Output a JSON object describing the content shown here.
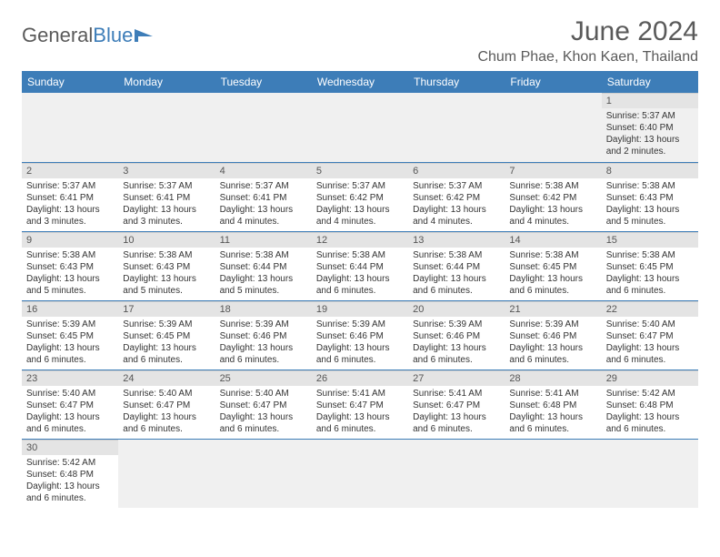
{
  "logo": {
    "text_gray": "General",
    "text_blue": "Blue"
  },
  "title": "June 2024",
  "location": "Chum Phae, Khon Kaen, Thailand",
  "colors": {
    "header_bg": "#3d7db8",
    "header_text": "#ffffff",
    "daynum_bg": "#e4e4e4",
    "text_gray": "#5a5a5a",
    "rule": "#3d7db8"
  },
  "weekdays": [
    "Sunday",
    "Monday",
    "Tuesday",
    "Wednesday",
    "Thursday",
    "Friday",
    "Saturday"
  ],
  "weeks": [
    [
      null,
      null,
      null,
      null,
      null,
      null,
      {
        "n": "1",
        "sr": "Sunrise: 5:37 AM",
        "ss": "Sunset: 6:40 PM",
        "dl": "Daylight: 13 hours and 2 minutes."
      }
    ],
    [
      {
        "n": "2",
        "sr": "Sunrise: 5:37 AM",
        "ss": "Sunset: 6:41 PM",
        "dl": "Daylight: 13 hours and 3 minutes."
      },
      {
        "n": "3",
        "sr": "Sunrise: 5:37 AM",
        "ss": "Sunset: 6:41 PM",
        "dl": "Daylight: 13 hours and 3 minutes."
      },
      {
        "n": "4",
        "sr": "Sunrise: 5:37 AM",
        "ss": "Sunset: 6:41 PM",
        "dl": "Daylight: 13 hours and 4 minutes."
      },
      {
        "n": "5",
        "sr": "Sunrise: 5:37 AM",
        "ss": "Sunset: 6:42 PM",
        "dl": "Daylight: 13 hours and 4 minutes."
      },
      {
        "n": "6",
        "sr": "Sunrise: 5:37 AM",
        "ss": "Sunset: 6:42 PM",
        "dl": "Daylight: 13 hours and 4 minutes."
      },
      {
        "n": "7",
        "sr": "Sunrise: 5:38 AM",
        "ss": "Sunset: 6:42 PM",
        "dl": "Daylight: 13 hours and 4 minutes."
      },
      {
        "n": "8",
        "sr": "Sunrise: 5:38 AM",
        "ss": "Sunset: 6:43 PM",
        "dl": "Daylight: 13 hours and 5 minutes."
      }
    ],
    [
      {
        "n": "9",
        "sr": "Sunrise: 5:38 AM",
        "ss": "Sunset: 6:43 PM",
        "dl": "Daylight: 13 hours and 5 minutes."
      },
      {
        "n": "10",
        "sr": "Sunrise: 5:38 AM",
        "ss": "Sunset: 6:43 PM",
        "dl": "Daylight: 13 hours and 5 minutes."
      },
      {
        "n": "11",
        "sr": "Sunrise: 5:38 AM",
        "ss": "Sunset: 6:44 PM",
        "dl": "Daylight: 13 hours and 5 minutes."
      },
      {
        "n": "12",
        "sr": "Sunrise: 5:38 AM",
        "ss": "Sunset: 6:44 PM",
        "dl": "Daylight: 13 hours and 6 minutes."
      },
      {
        "n": "13",
        "sr": "Sunrise: 5:38 AM",
        "ss": "Sunset: 6:44 PM",
        "dl": "Daylight: 13 hours and 6 minutes."
      },
      {
        "n": "14",
        "sr": "Sunrise: 5:38 AM",
        "ss": "Sunset: 6:45 PM",
        "dl": "Daylight: 13 hours and 6 minutes."
      },
      {
        "n": "15",
        "sr": "Sunrise: 5:38 AM",
        "ss": "Sunset: 6:45 PM",
        "dl": "Daylight: 13 hours and 6 minutes."
      }
    ],
    [
      {
        "n": "16",
        "sr": "Sunrise: 5:39 AM",
        "ss": "Sunset: 6:45 PM",
        "dl": "Daylight: 13 hours and 6 minutes."
      },
      {
        "n": "17",
        "sr": "Sunrise: 5:39 AM",
        "ss": "Sunset: 6:45 PM",
        "dl": "Daylight: 13 hours and 6 minutes."
      },
      {
        "n": "18",
        "sr": "Sunrise: 5:39 AM",
        "ss": "Sunset: 6:46 PM",
        "dl": "Daylight: 13 hours and 6 minutes."
      },
      {
        "n": "19",
        "sr": "Sunrise: 5:39 AM",
        "ss": "Sunset: 6:46 PM",
        "dl": "Daylight: 13 hours and 6 minutes."
      },
      {
        "n": "20",
        "sr": "Sunrise: 5:39 AM",
        "ss": "Sunset: 6:46 PM",
        "dl": "Daylight: 13 hours and 6 minutes."
      },
      {
        "n": "21",
        "sr": "Sunrise: 5:39 AM",
        "ss": "Sunset: 6:46 PM",
        "dl": "Daylight: 13 hours and 6 minutes."
      },
      {
        "n": "22",
        "sr": "Sunrise: 5:40 AM",
        "ss": "Sunset: 6:47 PM",
        "dl": "Daylight: 13 hours and 6 minutes."
      }
    ],
    [
      {
        "n": "23",
        "sr": "Sunrise: 5:40 AM",
        "ss": "Sunset: 6:47 PM",
        "dl": "Daylight: 13 hours and 6 minutes."
      },
      {
        "n": "24",
        "sr": "Sunrise: 5:40 AM",
        "ss": "Sunset: 6:47 PM",
        "dl": "Daylight: 13 hours and 6 minutes."
      },
      {
        "n": "25",
        "sr": "Sunrise: 5:40 AM",
        "ss": "Sunset: 6:47 PM",
        "dl": "Daylight: 13 hours and 6 minutes."
      },
      {
        "n": "26",
        "sr": "Sunrise: 5:41 AM",
        "ss": "Sunset: 6:47 PM",
        "dl": "Daylight: 13 hours and 6 minutes."
      },
      {
        "n": "27",
        "sr": "Sunrise: 5:41 AM",
        "ss": "Sunset: 6:47 PM",
        "dl": "Daylight: 13 hours and 6 minutes."
      },
      {
        "n": "28",
        "sr": "Sunrise: 5:41 AM",
        "ss": "Sunset: 6:48 PM",
        "dl": "Daylight: 13 hours and 6 minutes."
      },
      {
        "n": "29",
        "sr": "Sunrise: 5:42 AM",
        "ss": "Sunset: 6:48 PM",
        "dl": "Daylight: 13 hours and 6 minutes."
      }
    ],
    [
      {
        "n": "30",
        "sr": "Sunrise: 5:42 AM",
        "ss": "Sunset: 6:48 PM",
        "dl": "Daylight: 13 hours and 6 minutes."
      },
      null,
      null,
      null,
      null,
      null,
      null
    ]
  ]
}
